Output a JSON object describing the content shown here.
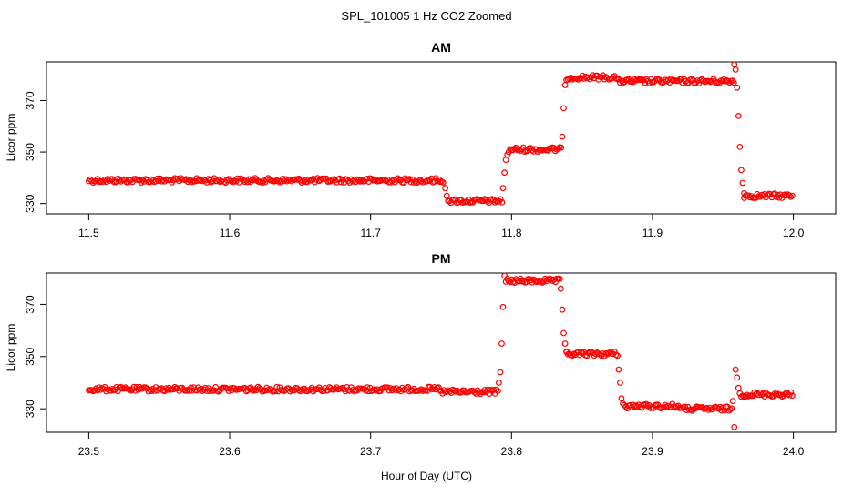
{
  "figure_title": "SPL_101005  1 Hz CO2 Zoomed",
  "xlabel": "Hour of Day (UTC)",
  "colors": {
    "points": "#ff0000",
    "axes": "#000000",
    "background": "#ffffff"
  },
  "chart_data": [
    {
      "type": "scatter",
      "title": "AM",
      "ylabel": "Licor ppm",
      "xlim": [
        11.47,
        12.03
      ],
      "ylim": [
        326,
        385
      ],
      "x_ticks": [
        11.5,
        11.6,
        11.7,
        11.8,
        11.9,
        12.0
      ],
      "x_tick_labels": [
        "11.5",
        "11.6",
        "11.7",
        "11.8",
        "11.9",
        "12.0"
      ],
      "y_ticks": [
        330,
        350,
        370
      ],
      "y_tick_labels": [
        "330",
        "350",
        "370"
      ],
      "grid": false,
      "segments": [
        {
          "x_start": 11.5,
          "x_end": 11.752,
          "y": 339
        },
        {
          "x_start": 11.756,
          "x_end": 11.794,
          "y": 331
        },
        {
          "x_start": 11.799,
          "x_end": 11.836,
          "y": 351
        },
        {
          "x_start": 11.84,
          "x_end": 11.875,
          "y": 379
        },
        {
          "x_start": 11.875,
          "x_end": 11.958,
          "y": 377.5
        },
        {
          "x_start": 11.965,
          "x_end": 12.0,
          "y": 333
        }
      ],
      "transitions": [
        {
          "x": [
            11.753,
            11.754,
            11.755
          ],
          "y": [
            336,
            333,
            331
          ]
        },
        {
          "x": [
            11.794,
            11.795,
            11.796,
            11.797,
            11.798
          ],
          "y": [
            336,
            342,
            347,
            349,
            350
          ]
        },
        {
          "x": [
            11.836,
            11.837,
            11.838,
            11.839
          ],
          "y": [
            356,
            367,
            376,
            378
          ]
        },
        {
          "x": [
            11.958,
            11.959,
            11.96,
            11.961,
            11.962,
            11.963,
            11.964,
            11.965
          ],
          "y": [
            384,
            382,
            375,
            364,
            352,
            343,
            338,
            334
          ]
        }
      ]
    },
    {
      "type": "scatter",
      "title": "PM",
      "ylabel": "Licor ppm",
      "xlim": [
        23.47,
        24.03
      ],
      "ylim": [
        321,
        382
      ],
      "x_ticks": [
        23.5,
        23.6,
        23.7,
        23.8,
        23.9,
        24.0
      ],
      "x_tick_labels": [
        "23.5",
        "23.6",
        "23.7",
        "23.8",
        "23.9",
        "24.0"
      ],
      "y_ticks": [
        330,
        350,
        370
      ],
      "y_tick_labels": [
        "330",
        "350",
        "370"
      ],
      "grid": false,
      "segments": [
        {
          "x_start": 23.5,
          "x_end": 23.75,
          "y": 337.5
        },
        {
          "x_start": 23.75,
          "x_end": 23.791,
          "y": 336.5
        },
        {
          "x_start": 23.796,
          "x_end": 23.835,
          "y": 379
        },
        {
          "x_start": 23.839,
          "x_end": 23.876,
          "y": 351
        },
        {
          "x_start": 23.88,
          "x_end": 23.92,
          "y": 331
        },
        {
          "x_start": 23.92,
          "x_end": 23.957,
          "y": 330
        },
        {
          "x_start": 23.962,
          "x_end": 24.0,
          "y": 335.5
        }
      ],
      "transitions": [
        {
          "x": [
            23.791,
            23.792,
            23.793,
            23.794,
            23.795
          ],
          "y": [
            340,
            344,
            355,
            369,
            381
          ]
        },
        {
          "x": [
            23.835,
            23.836,
            23.837,
            23.838,
            23.839
          ],
          "y": [
            376,
            368,
            359,
            355,
            352
          ]
        },
        {
          "x": [
            23.876,
            23.877,
            23.878,
            23.879
          ],
          "y": [
            345,
            340,
            334,
            332
          ]
        },
        {
          "x": [
            23.957,
            23.958,
            23.959,
            23.96,
            23.961
          ],
          "y": [
            333,
            323,
            345,
            342,
            338
          ]
        }
      ]
    }
  ]
}
